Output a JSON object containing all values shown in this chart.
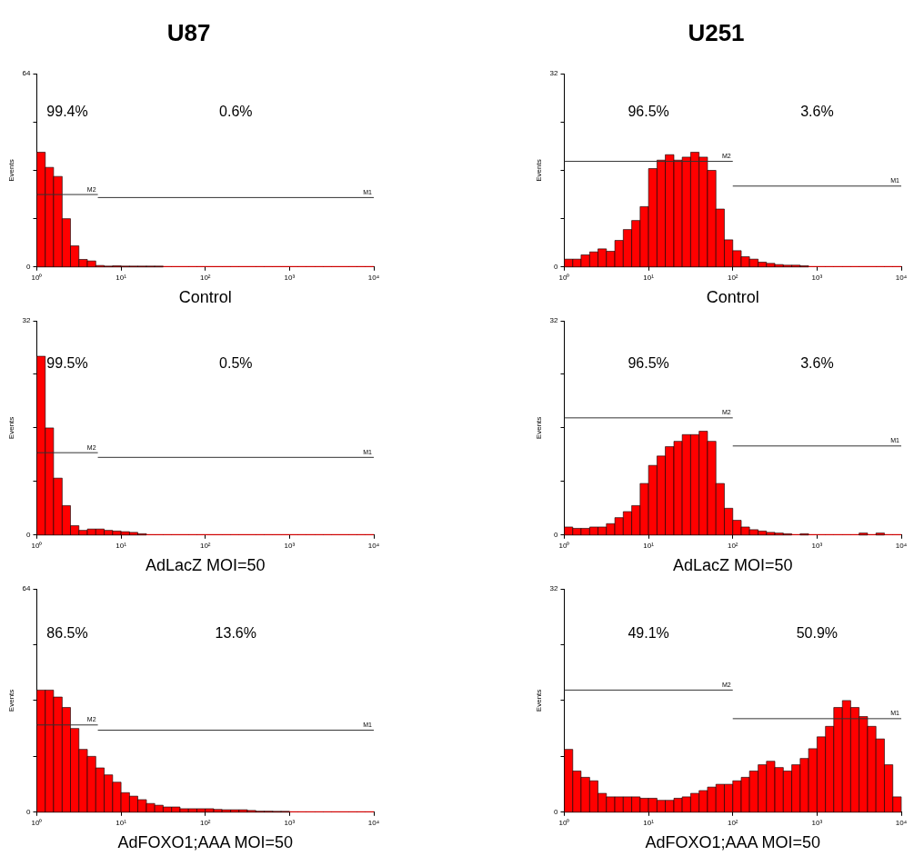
{
  "chart_data": [
    {
      "type": "histogram",
      "title": "U87",
      "xlabel": "Control",
      "ylabel": "Events",
      "log": "x",
      "color": "#ff0000",
      "bins": [
        1,
        1.26,
        1.58,
        2,
        2.51,
        3.16,
        3.98,
        5.01,
        6.31,
        7.94,
        10,
        12.6,
        15.8,
        20,
        25.1,
        31.6,
        39.8,
        50.1,
        63.1,
        79.4,
        100,
        126,
        158,
        200,
        251,
        316,
        398,
        501,
        631,
        794,
        1000,
        1260,
        1580,
        2000,
        2510,
        3160,
        3980,
        5010,
        6310,
        7940,
        10000
      ],
      "values": [
        38,
        33,
        30,
        16,
        7,
        2.5,
        2,
        0.5,
        0.3,
        0.4,
        0.3,
        0.1,
        0.3,
        0.2,
        0.1,
        0,
        0,
        0,
        0,
        0,
        0,
        0,
        0,
        0,
        0,
        0,
        0,
        0,
        0,
        0,
        0,
        0,
        0,
        0,
        0,
        0,
        0,
        0,
        0,
        0
      ],
      "series": [
        {
          "type": "line",
          "name": "M2",
          "color": "#333333",
          "x": [
            1,
            5.3
          ],
          "values": [
            24,
            24
          ]
        },
        {
          "type": "line",
          "name": "M1",
          "color": "#333333",
          "x": [
            5.3,
            10000
          ],
          "values": [
            23,
            23
          ]
        }
      ],
      "xlim": [
        1,
        10000
      ],
      "xticks": [
        {
          "value": 1,
          "label": "10⁰"
        },
        {
          "value": 10,
          "label": "10¹"
        },
        {
          "value": 100,
          "label": "10²"
        },
        {
          "value": 1000,
          "label": "10³"
        },
        {
          "value": 10000,
          "label": "10⁴"
        }
      ],
      "ylim": [
        0,
        64
      ],
      "yticks": [
        0,
        {
          "value": 16,
          "label": null
        },
        {
          "value": 32,
          "label": null
        },
        {
          "value": 48,
          "label": null
        },
        64
      ],
      "annotations": [
        "99.4%",
        "0.6%"
      ]
    },
    {
      "type": "histogram",
      "title": "U251",
      "xlabel": "Control",
      "ylabel": "Events",
      "log": "x",
      "color": "#ff0000",
      "bins": [
        1,
        1.26,
        1.58,
        2,
        2.51,
        3.16,
        3.98,
        5.01,
        6.31,
        7.94,
        10,
        12.6,
        15.8,
        20,
        25.1,
        31.6,
        39.8,
        50.1,
        63.1,
        79.4,
        100,
        126,
        158,
        200,
        251,
        316,
        398,
        501,
        631,
        794,
        1000,
        1260,
        1580,
        2000,
        2510,
        3160,
        3980,
        5010,
        6310,
        7940,
        10000
      ],
      "values": [
        1.3,
        1.3,
        2,
        2.5,
        3,
        2.6,
        4.4,
        6.2,
        7.7,
        10,
        16.3,
        17.7,
        18.6,
        17.7,
        18.2,
        19,
        18.2,
        16,
        9.6,
        4.5,
        2.7,
        1.7,
        1.3,
        0.8,
        0.6,
        0.4,
        0.3,
        0.3,
        0.2,
        0,
        0,
        0,
        0,
        0,
        0,
        0,
        0,
        0,
        0,
        0
      ],
      "series": [
        {
          "type": "line",
          "name": "M2",
          "color": "#333333",
          "x": [
            1,
            100
          ],
          "values": [
            17.5,
            17.5
          ]
        },
        {
          "type": "line",
          "name": "M1",
          "color": "#333333",
          "x": [
            100,
            10000
          ],
          "values": [
            13.4,
            13.4
          ]
        }
      ],
      "xlim": [
        1,
        10000
      ],
      "xticks": [
        {
          "value": 1,
          "label": "10⁰"
        },
        {
          "value": 10,
          "label": "10¹"
        },
        {
          "value": 100,
          "label": "10²"
        },
        {
          "value": 1000,
          "label": "10³"
        },
        {
          "value": 10000,
          "label": "10⁴"
        }
      ],
      "ylim": [
        0,
        32
      ],
      "yticks": [
        0,
        {
          "value": 8,
          "label": null
        },
        {
          "value": 16,
          "label": null
        },
        {
          "value": 24,
          "label": null
        },
        32
      ],
      "annotations": [
        "96.5%",
        "3.6%"
      ]
    },
    {
      "type": "histogram",
      "xlabel": "AdLacZ MOI=50",
      "ylabel": "Events",
      "log": "x",
      "color": "#ff0000",
      "bins": [
        1,
        1.26,
        1.58,
        2,
        2.51,
        3.16,
        3.98,
        5.01,
        6.31,
        7.94,
        10,
        12.6,
        15.8,
        20,
        25.1,
        31.6,
        39.8,
        50.1,
        63.1,
        79.4,
        100,
        126,
        158,
        200,
        251,
        316,
        398,
        501,
        631,
        794,
        1000,
        1260,
        1580,
        2000,
        2510,
        3160,
        3980,
        5010,
        6310,
        7940,
        10000
      ],
      "values": [
        26.7,
        16,
        8.5,
        4.4,
        1.4,
        0.7,
        0.9,
        0.9,
        0.7,
        0.6,
        0.5,
        0.4,
        0.2,
        0,
        0,
        0,
        0,
        0,
        0,
        0,
        0,
        0,
        0,
        0,
        0,
        0,
        0,
        0,
        0,
        0,
        0,
        0,
        0,
        0,
        0,
        0,
        0,
        0,
        0,
        0
      ],
      "series": [
        {
          "type": "line",
          "name": "M2",
          "color": "#333333",
          "x": [
            1,
            5.3
          ],
          "values": [
            12.3,
            12.3
          ]
        },
        {
          "type": "line",
          "name": "M1",
          "color": "#333333",
          "x": [
            5.3,
            10000
          ],
          "values": [
            11.6,
            11.6
          ]
        }
      ],
      "xlim": [
        1,
        10000
      ],
      "xticks": [
        {
          "value": 1,
          "label": "10⁰"
        },
        {
          "value": 10,
          "label": "10¹"
        },
        {
          "value": 100,
          "label": "10²"
        },
        {
          "value": 1000,
          "label": "10³"
        },
        {
          "value": 10000,
          "label": "10⁴"
        }
      ],
      "ylim": [
        0,
        32
      ],
      "yticks": [
        0,
        {
          "value": 8,
          "label": null
        },
        {
          "value": 16,
          "label": null
        },
        {
          "value": 24,
          "label": null
        },
        32
      ],
      "annotations": [
        "99.5%",
        "0.5%"
      ]
    },
    {
      "type": "histogram",
      "xlabel": "AdLacZ MOI=50",
      "ylabel": "Events",
      "log": "x",
      "color": "#ff0000",
      "bins": [
        1,
        1.26,
        1.58,
        2,
        2.51,
        3.16,
        3.98,
        5.01,
        6.31,
        7.94,
        10,
        12.6,
        15.8,
        20,
        25.1,
        31.6,
        39.8,
        50.1,
        63.1,
        79.4,
        100,
        126,
        158,
        200,
        251,
        316,
        398,
        501,
        631,
        794,
        1000,
        1260,
        1580,
        2000,
        2510,
        3160,
        3980,
        5010,
        6310,
        7940,
        10000
      ],
      "values": [
        1.2,
        1,
        1,
        1.2,
        1.2,
        1.7,
        2.6,
        3.5,
        4.4,
        7.7,
        10.4,
        11.8,
        13.2,
        14,
        15,
        15,
        15.5,
        14,
        7.7,
        4,
        2.2,
        1.2,
        0.8,
        0.6,
        0.4,
        0.3,
        0.2,
        0,
        0.2,
        0,
        0,
        0,
        0,
        0,
        0,
        0.3,
        0,
        0.3,
        0,
        0
      ],
      "series": [
        {
          "type": "line",
          "name": "M2",
          "color": "#333333",
          "x": [
            1,
            100
          ],
          "values": [
            17.5,
            17.5
          ]
        },
        {
          "type": "line",
          "name": "M1",
          "color": "#333333",
          "x": [
            100,
            10000
          ],
          "values": [
            13.3,
            13.3
          ]
        }
      ],
      "xlim": [
        1,
        10000
      ],
      "xticks": [
        {
          "value": 1,
          "label": "10⁰"
        },
        {
          "value": 10,
          "label": "10¹"
        },
        {
          "value": 100,
          "label": "10²"
        },
        {
          "value": 1000,
          "label": "10³"
        },
        {
          "value": 10000,
          "label": "10⁴"
        }
      ],
      "ylim": [
        0,
        32
      ],
      "yticks": [
        0,
        {
          "value": 8,
          "label": null
        },
        {
          "value": 16,
          "label": null
        },
        {
          "value": 24,
          "label": null
        },
        32
      ],
      "annotations": [
        "96.5%",
        "3.6%"
      ]
    },
    {
      "type": "histogram",
      "xlabel": "AdFOXO1;AAA MOI=50",
      "ylabel": "Events",
      "log": "x",
      "color": "#ff0000",
      "bins": [
        1,
        1.26,
        1.58,
        2,
        2.51,
        3.16,
        3.98,
        5.01,
        6.31,
        7.94,
        10,
        12.6,
        15.8,
        20,
        25.1,
        31.6,
        39.8,
        50.1,
        63.1,
        79.4,
        100,
        126,
        158,
        200,
        251,
        316,
        398,
        501,
        631,
        794,
        1000,
        1260,
        1580,
        2000,
        2510,
        3160,
        3980,
        5010,
        6310,
        7940,
        10000
      ],
      "values": [
        35,
        35,
        33,
        30,
        24,
        18,
        16,
        12.7,
        10.7,
        8.6,
        5.6,
        4.6,
        3.6,
        2.5,
        2,
        1.5,
        1.5,
        1,
        1,
        1,
        1,
        0.8,
        0.7,
        0.7,
        0.7,
        0.5,
        0.3,
        0.3,
        0.2,
        0.1,
        0,
        0,
        0,
        0,
        0,
        0,
        0,
        0,
        0,
        0
      ],
      "series": [
        {
          "type": "line",
          "name": "M2",
          "color": "#333333",
          "x": [
            1,
            5.3
          ],
          "values": [
            25,
            25
          ]
        },
        {
          "type": "line",
          "name": "M1",
          "color": "#333333",
          "x": [
            5.3,
            10000
          ],
          "values": [
            23.5,
            23.5
          ]
        }
      ],
      "xlim": [
        1,
        10000
      ],
      "xticks": [
        {
          "value": 1,
          "label": "10⁰"
        },
        {
          "value": 10,
          "label": "10¹"
        },
        {
          "value": 100,
          "label": "10²"
        },
        {
          "value": 1000,
          "label": "10³"
        },
        {
          "value": 10000,
          "label": "10⁴"
        }
      ],
      "ylim": [
        0,
        64
      ],
      "yticks": [
        0,
        {
          "value": 16,
          "label": null
        },
        {
          "value": 32,
          "label": null
        },
        {
          "value": 48,
          "label": null
        },
        64
      ],
      "annotations": [
        "86.5%",
        "13.6%"
      ]
    },
    {
      "type": "histogram",
      "xlabel": "AdFOXO1;AAA MOI=50",
      "ylabel": "Events",
      "log": "x",
      "color": "#ff0000",
      "bins": [
        1,
        1.26,
        1.58,
        2,
        2.51,
        3.16,
        3.98,
        5.01,
        6.31,
        7.94,
        10,
        12.6,
        15.8,
        20,
        25.1,
        31.6,
        39.8,
        50.1,
        63.1,
        79.4,
        100,
        126,
        158,
        200,
        251,
        316,
        398,
        501,
        631,
        794,
        1000,
        1260,
        1580,
        2000,
        2510,
        3160,
        3980,
        5010,
        6310,
        7940,
        10000
      ],
      "values": [
        9,
        5.9,
        5,
        4.5,
        2.7,
        2.2,
        2.2,
        2.2,
        2.2,
        2,
        2,
        1.7,
        1.7,
        2,
        2.2,
        2.7,
        3.1,
        3.6,
        4,
        4,
        4.5,
        5,
        5.9,
        6.8,
        7.3,
        6.4,
        5.9,
        6.8,
        7.7,
        9.1,
        10.8,
        12.3,
        15,
        16,
        15,
        13.7,
        12.3,
        10.5,
        6.8,
        2.2
      ],
      "series": [
        {
          "type": "line",
          "name": "M2",
          "color": "#333333",
          "x": [
            1,
            100
          ],
          "values": [
            17.5,
            17.5
          ]
        },
        {
          "type": "line",
          "name": "M1",
          "color": "#333333",
          "x": [
            100,
            10000
          ],
          "values": [
            13.4,
            13.4
          ]
        }
      ],
      "xlim": [
        1,
        10000
      ],
      "xticks": [
        {
          "value": 1,
          "label": "10⁰"
        },
        {
          "value": 10,
          "label": "10¹"
        },
        {
          "value": 100,
          "label": "10²"
        },
        {
          "value": 1000,
          "label": "10³"
        },
        {
          "value": 10000,
          "label": "10⁴"
        }
      ],
      "ylim": [
        0,
        32
      ],
      "yticks": [
        0,
        {
          "value": 8,
          "label": null
        },
        {
          "value": 16,
          "label": null
        },
        {
          "value": 24,
          "label": null
        },
        32
      ],
      "annotations": [
        "49.1%",
        "50.9%"
      ]
    }
  ]
}
